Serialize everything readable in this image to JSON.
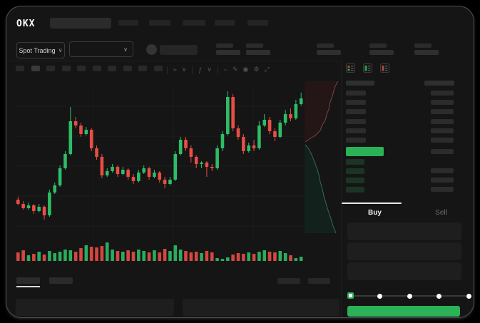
{
  "header": {
    "logo": "OKX",
    "nav_placeholders": [
      28,
      30,
      32,
      28,
      29
    ]
  },
  "ticker": {
    "market_selector": {
      "label": "Spot Trading",
      "chevron": "∨"
    },
    "pair_selector": {
      "chevron": "∨"
    },
    "stat_pairs": 5
  },
  "chart_toolbar": {
    "timeframe_placeholders": 10,
    "active_index": 1,
    "icons": [
      {
        "name": "candle-style-icon",
        "glyph": "≈"
      },
      {
        "name": "chevron-down-icon",
        "glyph": "∨"
      },
      {
        "name": "indicators-icon",
        "glyph": "ƒ"
      },
      {
        "name": "chevron-down-icon",
        "glyph": "∨"
      },
      {
        "name": "line-tool-icon",
        "glyph": "~"
      },
      {
        "name": "draw-icon",
        "glyph": "✎"
      },
      {
        "name": "screenshot-icon",
        "glyph": "◉"
      },
      {
        "name": "settings-icon",
        "glyph": "⚙"
      },
      {
        "name": "fullscreen-icon",
        "glyph": "⤢"
      }
    ]
  },
  "chart_data": {
    "type": "candlestick",
    "title": "",
    "xlabel": "",
    "ylabel": "",
    "ylim": [
      0,
      105
    ],
    "grid": true,
    "colors": {
      "up": "#2ebd67",
      "down": "#e94d45"
    },
    "candles": [
      [
        28,
        30,
        24,
        25
      ],
      [
        25,
        27,
        21,
        22
      ],
      [
        22,
        26,
        21,
        24
      ],
      [
        24,
        25,
        18,
        20
      ],
      [
        20,
        25,
        19,
        23
      ],
      [
        23,
        24,
        14,
        17
      ],
      [
        17,
        35,
        16,
        33
      ],
      [
        33,
        40,
        32,
        38
      ],
      [
        38,
        52,
        37,
        50
      ],
      [
        50,
        62,
        49,
        60
      ],
      [
        60,
        93,
        59,
        83
      ],
      [
        83,
        86,
        78,
        80
      ],
      [
        80,
        82,
        72,
        74
      ],
      [
        74,
        79,
        73,
        77
      ],
      [
        77,
        78,
        62,
        64
      ],
      [
        64,
        66,
        56,
        58
      ],
      [
        58,
        60,
        43,
        45
      ],
      [
        45,
        50,
        44,
        48
      ],
      [
        48,
        53,
        47,
        51
      ],
      [
        51,
        52,
        44,
        46
      ],
      [
        46,
        51,
        45,
        49
      ],
      [
        49,
        50,
        42,
        44
      ],
      [
        44,
        46,
        39,
        41
      ],
      [
        41,
        49,
        40,
        47
      ],
      [
        47,
        52,
        46,
        50
      ],
      [
        50,
        51,
        42,
        44
      ],
      [
        44,
        49,
        43,
        47
      ],
      [
        47,
        48,
        40,
        42
      ],
      [
        42,
        44,
        36,
        39
      ],
      [
        39,
        44,
        38,
        42
      ],
      [
        42,
        62,
        41,
        60
      ],
      [
        60,
        72,
        59,
        70
      ],
      [
        70,
        72,
        62,
        64
      ],
      [
        64,
        66,
        54,
        58
      ],
      [
        58,
        59,
        50,
        53
      ],
      [
        53,
        55,
        50,
        54
      ],
      [
        54,
        55,
        44,
        51
      ],
      [
        51,
        53,
        48,
        50
      ],
      [
        50,
        66,
        49,
        64
      ],
      [
        64,
        76,
        62,
        74
      ],
      [
        74,
        104,
        73,
        100
      ],
      [
        100,
        102,
        76,
        78
      ],
      [
        78,
        80,
        70,
        72
      ],
      [
        72,
        74,
        60,
        62
      ],
      [
        62,
        68,
        61,
        66
      ],
      [
        66,
        70,
        62,
        64
      ],
      [
        64,
        83,
        63,
        80
      ],
      [
        80,
        88,
        79,
        84
      ],
      [
        84,
        86,
        74,
        76
      ],
      [
        76,
        78,
        69,
        72
      ],
      [
        72,
        84,
        71,
        82
      ],
      [
        82,
        91,
        80,
        88
      ],
      [
        88,
        92,
        83,
        85
      ],
      [
        85,
        98,
        84,
        95
      ],
      [
        95,
        103,
        94,
        99
      ]
    ],
    "volumes": [
      12,
      15,
      8,
      10,
      13,
      9,
      14,
      11,
      13,
      16,
      15,
      13,
      18,
      22,
      20,
      19,
      21,
      26,
      16,
      14,
      13,
      15,
      13,
      16,
      14,
      12,
      15,
      12,
      17,
      14,
      22,
      16,
      14,
      12,
      13,
      11,
      14,
      12,
      4,
      3,
      5,
      9,
      11,
      10,
      12,
      10,
      13,
      15,
      13,
      12,
      14,
      11,
      8,
      4,
      6
    ]
  },
  "depth_chart": {
    "ask_color": "#7c4444",
    "ask_fill": "#241517",
    "bid_color": "#38695a",
    "bid_fill": "#13211c",
    "asks_line": [
      [
        47,
        3
      ],
      [
        43,
        10
      ],
      [
        41,
        16
      ],
      [
        39,
        24
      ],
      [
        36,
        32
      ],
      [
        34,
        42
      ],
      [
        31,
        50
      ],
      [
        29,
        58
      ],
      [
        25,
        64
      ],
      [
        22,
        72
      ],
      [
        15,
        79
      ],
      [
        7,
        84
      ],
      [
        1,
        88
      ]
    ],
    "bids_line": [
      [
        1,
        92
      ],
      [
        6,
        98
      ],
      [
        10,
        106
      ],
      [
        14,
        116
      ],
      [
        17,
        124
      ],
      [
        20,
        134
      ],
      [
        22,
        144
      ],
      [
        25,
        154
      ],
      [
        27,
        164
      ],
      [
        30,
        174
      ],
      [
        33,
        184
      ],
      [
        37,
        196
      ],
      [
        40,
        206
      ],
      [
        44,
        216
      ]
    ]
  },
  "orderbook": {
    "ask_rows": 6,
    "bid_rows": 4,
    "price_highlight_color": "#2bb156",
    "bid_row_tint": "#1b3424"
  },
  "trade_panel": {
    "tabs": [
      {
        "label": "Buy",
        "active": true
      },
      {
        "label": "Sell",
        "active": false
      }
    ],
    "input_placeholders": 3,
    "slider": {
      "stops": 5,
      "active_stop": 0
    },
    "accent_color": "#2bb156"
  },
  "bottom_panel": {
    "left_tabs": 2,
    "right_placeholders": 2,
    "blocks": 2
  }
}
